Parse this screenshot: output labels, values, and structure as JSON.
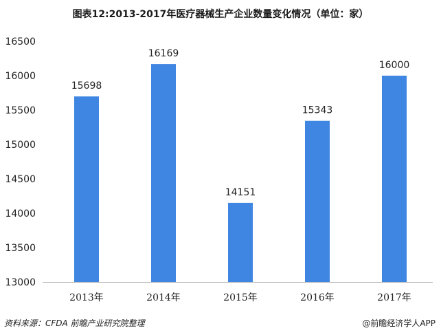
{
  "colors": {
    "bar": "#3f86e2",
    "axis": "#bfbfbf",
    "text": "#222222"
  },
  "footer": {
    "source": "资料来源：CFDA  前瞻产业研究院整理",
    "credit": "@前瞻经济学人APP"
  },
  "chart_data": {
    "type": "bar",
    "title": "图表12:2013-2017年医疗器械生产企业数量变化情况（单位：家）",
    "categories": [
      "2013年",
      "2014年",
      "2015年",
      "2016年",
      "2017年"
    ],
    "values": [
      15698,
      16169,
      14151,
      15343,
      16000
    ],
    "data_labels": [
      "15698",
      "16169",
      "14151",
      "15343",
      "16000"
    ],
    "yticks": [
      "13000",
      "13500",
      "14000",
      "14500",
      "15000",
      "15500",
      "16000",
      "16500"
    ],
    "ylim": [
      13000,
      16500
    ],
    "xlabel": "",
    "ylabel": "",
    "grid": false,
    "legend": "none"
  }
}
